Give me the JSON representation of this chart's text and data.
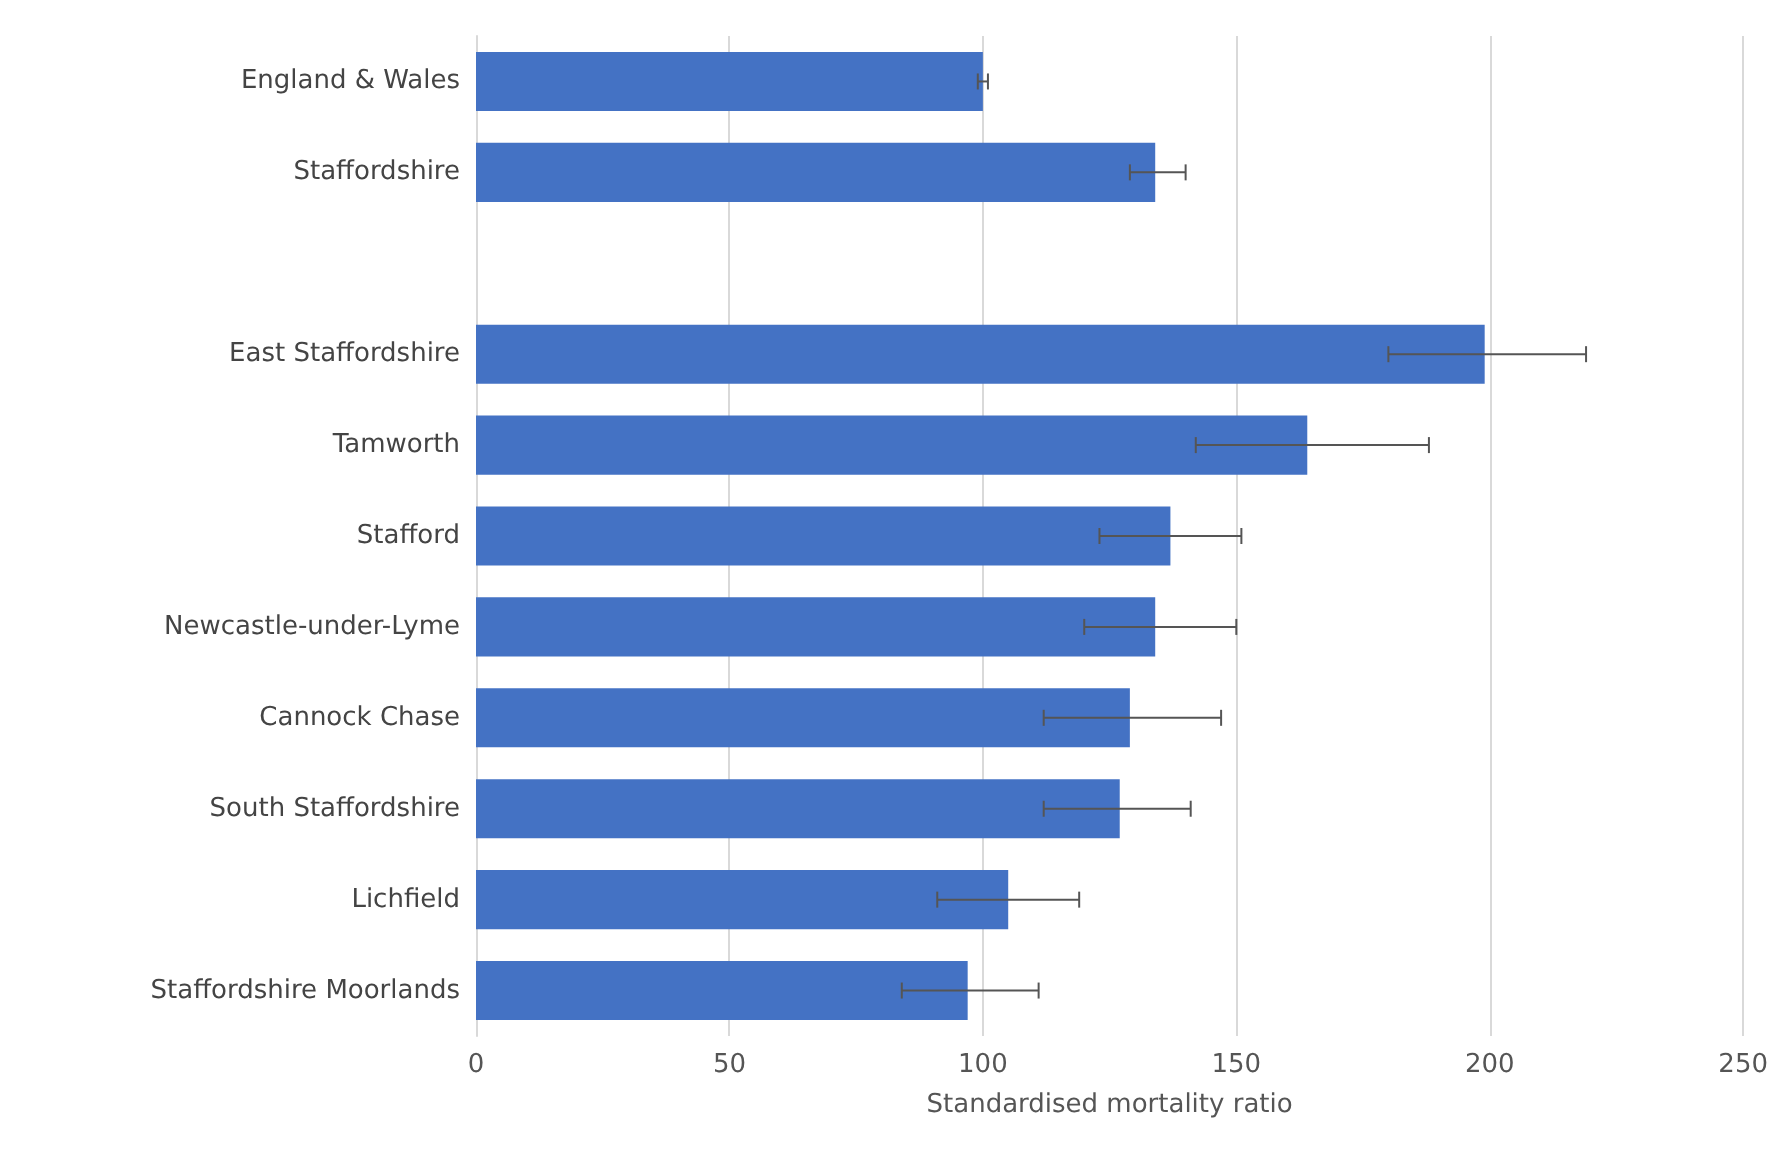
{
  "chart_data": {
    "type": "bar",
    "orientation": "horizontal",
    "xlabel": "Standardised mortality ratio",
    "categories": [
      "England & Wales",
      "Staffordshire",
      null,
      "East Staffordshire",
      "Tamworth",
      "Stafford",
      "Newcastle-under-Lyme",
      "Cannock Chase",
      "South Staffordshire",
      "Lichfield",
      "Staffordshire Moorlands"
    ],
    "values": [
      100,
      134,
      null,
      199,
      164,
      137,
      134,
      129,
      127,
      105,
      97
    ],
    "errors": [
      [
        99,
        101
      ],
      [
        129,
        140
      ],
      null,
      [
        180,
        219
      ],
      [
        142,
        188
      ],
      [
        123,
        151
      ],
      [
        120,
        150
      ],
      [
        112,
        147
      ],
      [
        112,
        141
      ],
      [
        91,
        119
      ],
      [
        84,
        111
      ]
    ],
    "color": "#4472c4",
    "xlim": [
      0,
      250
    ],
    "xticks": [
      0,
      50,
      100,
      150,
      200,
      250
    ],
    "grid": "x"
  }
}
